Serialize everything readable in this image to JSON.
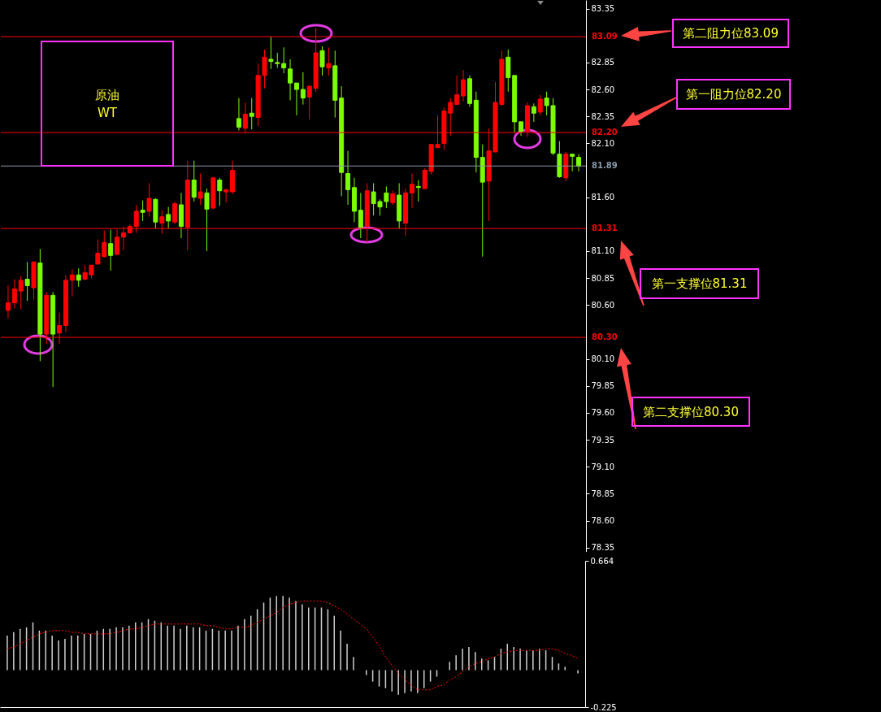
{
  "chart_data": [
    {
      "type": "candlestick",
      "tick_labels": "y",
      "categories": [
        null,
        null,
        null,
        null,
        null,
        null,
        null,
        null,
        null,
        null,
        null,
        null,
        null,
        null,
        null,
        null,
        null,
        null,
        null,
        null,
        null,
        null,
        null,
        null,
        null,
        null,
        null,
        null,
        null,
        null,
        null,
        null,
        null,
        null,
        null,
        null,
        null,
        null,
        null,
        null,
        null,
        null,
        null,
        null,
        null,
        null,
        null,
        null,
        null,
        null,
        null,
        null,
        null,
        null,
        null,
        null,
        null,
        null,
        null,
        null,
        null,
        null,
        null,
        null,
        null,
        null,
        null,
        null,
        null,
        null,
        null,
        null,
        null,
        null,
        null,
        null,
        null,
        null,
        null,
        null,
        null,
        null,
        null,
        null,
        null,
        null,
        null,
        null,
        null,
        null
      ],
      "ohlc": [
        [
          80.55,
          80.78,
          80.48,
          80.62
        ],
        [
          80.62,
          80.84,
          80.57,
          80.75
        ],
        [
          80.73,
          80.87,
          80.56,
          80.83
        ],
        [
          80.84,
          81.0,
          80.64,
          80.78
        ],
        [
          80.76,
          81.0,
          80.65,
          81.0
        ],
        [
          80.99,
          81.12,
          80.08,
          80.33
        ],
        [
          80.33,
          80.72,
          80.24,
          80.69
        ],
        [
          80.69,
          80.72,
          79.84,
          80.33
        ],
        [
          80.34,
          80.53,
          80.24,
          80.41
        ],
        [
          80.41,
          80.88,
          80.35,
          80.83
        ],
        [
          80.83,
          80.93,
          80.68,
          80.88
        ],
        [
          80.88,
          80.94,
          80.77,
          80.83
        ],
        [
          80.84,
          80.97,
          80.83,
          80.9
        ],
        [
          80.88,
          80.97,
          80.85,
          80.97
        ],
        [
          80.98,
          81.21,
          80.98,
          81.08
        ],
        [
          81.05,
          81.29,
          81.04,
          81.18
        ],
        [
          81.17,
          81.3,
          80.92,
          81.06
        ],
        [
          81.07,
          81.3,
          81.06,
          81.23
        ],
        [
          81.23,
          81.33,
          81.11,
          81.27
        ],
        [
          81.27,
          81.35,
          81.26,
          81.33
        ],
        [
          81.33,
          81.53,
          81.27,
          81.47
        ],
        [
          81.48,
          81.57,
          81.38,
          81.46
        ],
        [
          81.47,
          81.73,
          81.42,
          81.59
        ],
        [
          81.58,
          81.59,
          81.31,
          81.37
        ],
        [
          81.36,
          81.48,
          81.26,
          81.42
        ],
        [
          81.44,
          81.51,
          81.31,
          81.38
        ],
        [
          81.37,
          81.56,
          81.35,
          81.54
        ],
        [
          81.53,
          81.64,
          81.22,
          81.33
        ],
        [
          81.32,
          81.94,
          81.11,
          81.76
        ],
        [
          81.76,
          81.94,
          81.56,
          81.6
        ],
        [
          81.59,
          81.82,
          81.53,
          81.65
        ],
        [
          81.64,
          81.68,
          81.1,
          81.49
        ],
        [
          81.5,
          81.79,
          81.49,
          81.78
        ],
        [
          81.76,
          81.78,
          81.52,
          81.66
        ],
        [
          81.65,
          81.68,
          81.55,
          81.67
        ],
        [
          81.65,
          81.94,
          81.63,
          81.85
        ],
        [
          82.33,
          82.52,
          82.22,
          82.25
        ],
        [
          82.24,
          82.48,
          82.19,
          82.37
        ],
        [
          82.38,
          82.52,
          82.23,
          82.35
        ],
        [
          82.34,
          82.84,
          82.26,
          82.73
        ],
        [
          82.73,
          82.97,
          82.61,
          82.9
        ],
        [
          82.88,
          83.09,
          82.79,
          82.86
        ],
        [
          82.85,
          82.94,
          82.8,
          82.84
        ],
        [
          82.84,
          82.99,
          82.75,
          82.8
        ],
        [
          82.79,
          82.88,
          82.5,
          82.66
        ],
        [
          82.66,
          82.66,
          82.36,
          82.6
        ],
        [
          82.6,
          82.76,
          82.46,
          82.52
        ],
        [
          82.53,
          82.64,
          82.32,
          82.63
        ],
        [
          82.61,
          83.17,
          82.58,
          82.94
        ],
        [
          82.96,
          83.0,
          82.73,
          82.81
        ],
        [
          82.8,
          82.99,
          82.73,
          82.84
        ],
        [
          82.82,
          82.96,
          82.34,
          82.5
        ],
        [
          82.52,
          82.63,
          81.61,
          81.83
        ],
        [
          81.82,
          82.03,
          81.53,
          81.67
        ],
        [
          81.69,
          81.78,
          81.37,
          81.47
        ],
        [
          81.48,
          81.64,
          81.22,
          81.32
        ],
        [
          81.33,
          81.73,
          81.18,
          81.66
        ],
        [
          81.65,
          81.73,
          81.43,
          81.54
        ],
        [
          81.56,
          81.58,
          81.43,
          81.51
        ],
        [
          81.64,
          81.7,
          81.5,
          81.56
        ],
        [
          81.55,
          81.66,
          81.53,
          81.63
        ],
        [
          81.62,
          81.73,
          81.31,
          81.38
        ],
        [
          81.36,
          81.68,
          81.24,
          81.64
        ],
        [
          81.64,
          81.82,
          81.5,
          81.72
        ],
        [
          81.7,
          81.76,
          81.56,
          81.69
        ],
        [
          81.68,
          81.87,
          81.68,
          81.85
        ],
        [
          81.84,
          82.09,
          81.81,
          82.09
        ],
        [
          82.06,
          82.36,
          82.06,
          82.09
        ],
        [
          82.1,
          82.43,
          82.04,
          82.4
        ],
        [
          82.38,
          82.52,
          82.17,
          82.48
        ],
        [
          82.46,
          82.73,
          82.46,
          82.55
        ],
        [
          82.54,
          82.78,
          82.49,
          82.69
        ],
        [
          82.7,
          82.73,
          82.44,
          82.47
        ],
        [
          82.5,
          82.58,
          81.83,
          81.97
        ],
        [
          81.97,
          82.09,
          81.05,
          81.74
        ],
        [
          81.75,
          82.24,
          81.38,
          82.03
        ],
        [
          82.02,
          82.67,
          82.02,
          82.48
        ],
        [
          82.46,
          82.96,
          82.45,
          82.88
        ],
        [
          82.9,
          82.97,
          82.58,
          82.71
        ],
        [
          82.73,
          82.73,
          82.2,
          82.3
        ],
        [
          82.3,
          82.3,
          82.17,
          82.21
        ],
        [
          82.21,
          82.48,
          82.16,
          82.45
        ],
        [
          82.44,
          82.47,
          82.3,
          82.38
        ],
        [
          82.39,
          82.55,
          82.36,
          82.51
        ],
        [
          82.52,
          82.58,
          82.36,
          82.45
        ],
        [
          82.45,
          82.52,
          81.99,
          82.01
        ],
        [
          82.0,
          82.12,
          81.78,
          81.79
        ],
        [
          81.78,
          82.02,
          81.75,
          82.0
        ],
        [
          82.0,
          82.0,
          81.84,
          81.98
        ],
        [
          81.97,
          82.0,
          81.84,
          81.89
        ]
      ],
      "colors": [
        "#ff0000",
        "#ff0000",
        "#ff0000",
        "#7cfc00",
        "#ff0000",
        "#7cfc00",
        "#ff0000",
        "#7cfc00",
        "#ff0000",
        "#ff0000",
        "#ff0000",
        "#7cfc00",
        "#ff0000",
        "#ff0000",
        "#ff0000",
        "#ff0000",
        "#7cfc00",
        "#ff0000",
        "#ff0000",
        "#ff0000",
        "#ff0000",
        "#7cfc00",
        "#ff0000",
        "#7cfc00",
        "#ff0000",
        "#7cfc00",
        "#ff0000",
        "#7cfc00",
        "#ff0000",
        "#7cfc00",
        "#ff0000",
        "#7cfc00",
        "#ff0000",
        "#7cfc00",
        "#ff0000",
        "#ff0000",
        "#7cfc00",
        "#ff0000",
        "#7cfc00",
        "#ff0000",
        "#ff0000",
        "#7cfc00",
        "#7cfc00",
        "#7cfc00",
        "#7cfc00",
        "#7cfc00",
        "#7cfc00",
        "#ff0000",
        "#ff0000",
        "#7cfc00",
        "#ff0000",
        "#7cfc00",
        "#7cfc00",
        "#7cfc00",
        "#7cfc00",
        "#7cfc00",
        "#ff0000",
        "#7cfc00",
        "#7cfc00",
        "#7cfc00",
        "#ff0000",
        "#7cfc00",
        "#ff0000",
        "#ff0000",
        "#7cfc00",
        "#ff0000",
        "#ff0000",
        "#ff0000",
        "#ff0000",
        "#ff0000",
        "#ff0000",
        "#ff0000",
        "#7cfc00",
        "#7cfc00",
        "#7cfc00",
        "#ff0000",
        "#ff0000",
        "#ff0000",
        "#7cfc00",
        "#7cfc00",
        "#7cfc00",
        "#ff0000",
        "#7cfc00",
        "#ff0000",
        "#7cfc00",
        "#7cfc00",
        "#7cfc00",
        "#ff0000",
        "#7cfc00",
        "#7cfc00"
      ],
      "ylim": [
        78.31,
        83.43
      ],
      "yticks": [
        83.35,
        82.85,
        {
          "value": 82.6,
          "label": "82.60"
        },
        82.35,
        {
          "value": 82.1,
          "label": "82.10"
        },
        {
          "value": 81.6,
          "label": "81.60"
        },
        {
          "value": 81.1,
          "label": "81.10"
        },
        80.85,
        {
          "value": 80.6,
          "label": "80.60"
        },
        {
          "value": 80.1,
          "label": "80.10"
        },
        79.85,
        {
          "value": 79.6,
          "label": "79.60"
        },
        79.35,
        {
          "value": 79.1,
          "label": "79.10"
        },
        78.85,
        {
          "value": 78.6,
          "label": "78.60"
        },
        78.35
      ],
      "ref_lines": [
        {
          "axis": "y",
          "value": 83.09,
          "label": "83.09",
          "color": "#ff0000"
        },
        {
          "axis": "y",
          "value": 82.2,
          "label": "82.20",
          "color": "#ff0000"
        },
        {
          "axis": "y",
          "value": 81.89,
          "label": "81.89",
          "color": "#8899aa"
        },
        {
          "axis": "y",
          "value": 81.31,
          "label": "81.31",
          "color": "#ff0000"
        },
        {
          "axis": "y",
          "value": 80.3,
          "label": "80.30",
          "color": "#ff0000"
        }
      ],
      "annotations": [
        "原油\nWT",
        "第二阻力位83.09",
        "第一阻力位82.20",
        "第一支撑位81.31",
        "第二支撑位80.30"
      ]
    },
    {
      "type": "bar",
      "tick_labels": "y",
      "categories": [
        null,
        null,
        null,
        null,
        null,
        null,
        null,
        null,
        null,
        null,
        null,
        null,
        null,
        null,
        null,
        null,
        null,
        null,
        null,
        null,
        null,
        null,
        null,
        null,
        null,
        null,
        null,
        null,
        null,
        null,
        null,
        null,
        null,
        null,
        null,
        null,
        null,
        null,
        null,
        null,
        null,
        null,
        null,
        null,
        null,
        null,
        null,
        null,
        null,
        null,
        null,
        null,
        null,
        null,
        null,
        null,
        null,
        null,
        null,
        null,
        null,
        null,
        null,
        null,
        null,
        null,
        null,
        null,
        null,
        null,
        null,
        null,
        null,
        null,
        null,
        null,
        null,
        null,
        null,
        null,
        null,
        null,
        null,
        null,
        null,
        null,
        null,
        null,
        null,
        null
      ],
      "ylim": [
        -0.225,
        0.664
      ],
      "yticks": [
        0.664,
        -0.225
      ],
      "series": [
        {
          "type": "bar",
          "color": "#d0d0d0",
          "values": [
            0.21,
            0.23,
            0.25,
            0.26,
            0.29,
            0.24,
            0.24,
            0.21,
            0.18,
            0.19,
            0.21,
            0.21,
            0.22,
            0.22,
            0.24,
            0.25,
            0.25,
            0.26,
            0.26,
            0.27,
            0.29,
            0.29,
            0.31,
            0.3,
            0.29,
            0.27,
            0.27,
            0.25,
            0.27,
            0.26,
            0.26,
            0.24,
            0.25,
            0.24,
            0.24,
            0.24,
            0.27,
            0.31,
            0.33,
            0.37,
            0.41,
            0.44,
            0.45,
            0.45,
            0.44,
            0.42,
            0.4,
            0.38,
            0.38,
            0.38,
            0.37,
            0.33,
            0.24,
            0.16,
            0.08,
            0.0,
            -0.03,
            -0.07,
            -0.1,
            -0.11,
            -0.13,
            -0.15,
            -0.14,
            -0.13,
            -0.14,
            -0.11,
            -0.07,
            -0.04,
            0.0,
            0.05,
            0.09,
            0.13,
            0.14,
            0.11,
            0.07,
            0.06,
            0.08,
            0.13,
            0.16,
            0.14,
            0.13,
            0.12,
            0.12,
            0.13,
            0.12,
            0.08,
            0.04,
            0.02,
            0.0,
            -0.02
          ]
        },
        {
          "type": "line",
          "color": "#ff0000",
          "line_style": "dotted",
          "values": [
            0.13,
            0.14,
            0.16,
            0.18,
            0.2,
            0.22,
            0.23,
            0.24,
            0.24,
            0.24,
            0.23,
            0.23,
            0.22,
            0.22,
            0.22,
            0.22,
            0.22,
            0.23,
            0.24,
            0.25,
            0.25,
            0.26,
            0.27,
            0.28,
            0.28,
            0.28,
            0.28,
            0.28,
            0.28,
            0.28,
            0.28,
            0.27,
            0.27,
            0.26,
            0.25,
            0.25,
            0.26,
            0.26,
            0.27,
            0.29,
            0.31,
            0.33,
            0.35,
            0.38,
            0.4,
            0.41,
            0.42,
            0.42,
            0.42,
            0.42,
            0.41,
            0.39,
            0.37,
            0.34,
            0.31,
            0.28,
            0.25,
            0.2,
            0.15,
            0.08,
            0.03,
            -0.02,
            -0.06,
            -0.09,
            -0.12,
            -0.12,
            -0.12,
            -0.1,
            -0.09,
            -0.06,
            -0.04,
            -0.01,
            0.02,
            0.04,
            0.05,
            0.07,
            0.08,
            0.1,
            0.11,
            0.12,
            0.12,
            0.12,
            0.12,
            0.12,
            0.13,
            0.13,
            0.12,
            0.1,
            0.09,
            0.07
          ]
        }
      ]
    }
  ]
}
